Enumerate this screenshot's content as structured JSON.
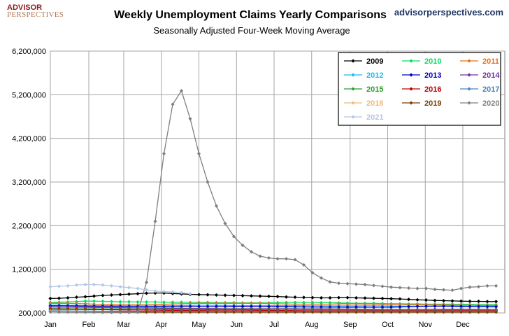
{
  "header": {
    "logo_line1": "ADVISOR",
    "logo_line2": "PERSPECTIVES",
    "site": "advisorperspectives.com"
  },
  "chart_data": {
    "type": "line",
    "title": "Weekly Unemployment Claims Yearly Comparisons",
    "subtitle": "Seasonally Adjusted Four-Week Moving Average",
    "xlabel": "",
    "ylabel": "",
    "ylim": [
      200000,
      6200000
    ],
    "yticks": [
      200000,
      1200000,
      2200000,
      3200000,
      4200000,
      5200000,
      6200000
    ],
    "ytick_labels": [
      "200,000",
      "1,200,000",
      "2,200,000",
      "3,200,000",
      "4,200,000",
      "5,200,000",
      "6,200,000"
    ],
    "xlim": [
      1,
      53
    ],
    "x_tick_labels": [
      "Jan",
      "Feb",
      "Mar",
      "Apr",
      "May",
      "Jun",
      "Jul",
      "Aug",
      "Sep",
      "Oct",
      "Nov",
      "Dec"
    ],
    "x_tick_weeks": [
      1,
      5.4,
      9.4,
      13.7,
      18,
      22.3,
      26.6,
      30.9,
      35.3,
      39.6,
      43.9,
      48.2
    ],
    "grid": true,
    "legend_position": "top-right",
    "series": [
      {
        "name": "2009",
        "color": "#000000",
        "marker": "diamond",
        "values": [
          530000,
          535000,
          545000,
          560000,
          570000,
          585000,
          600000,
          610000,
          620000,
          630000,
          640000,
          650000,
          655000,
          655000,
          645000,
          635000,
          625000,
          620000,
          615000,
          610000,
          605000,
          600000,
          595000,
          590000,
          585000,
          580000,
          575000,
          565000,
          560000,
          555000,
          550000,
          545000,
          545000,
          550000,
          550000,
          545000,
          540000,
          535000,
          530000,
          525000,
          520000,
          510000,
          500000,
          495000,
          485000,
          480000,
          475000,
          470000,
          465000,
          465000,
          460000,
          460000
        ]
      },
      {
        "name": "2010",
        "color": "#00e060",
        "marker": "diamond",
        "values": [
          440000,
          445000,
          450000,
          460000,
          470000,
          470000,
          465000,
          460000,
          455000,
          455000,
          450000,
          450000,
          450000,
          445000,
          445000,
          445000,
          440000,
          440000,
          440000,
          435000,
          435000,
          435000,
          430000,
          430000,
          430000,
          430000,
          435000,
          440000,
          440000,
          440000,
          440000,
          435000,
          435000,
          430000,
          425000,
          420000,
          420000,
          420000,
          415000,
          410000,
          410000,
          405000,
          405000,
          400000,
          400000,
          400000,
          400000,
          395000,
          395000,
          390000,
          390000,
          390000
        ]
      },
      {
        "name": "2011",
        "color": "#e87010",
        "marker": "diamond",
        "values": [
          420000,
          420000,
          420000,
          415000,
          410000,
          400000,
          395000,
          390000,
          385000,
          385000,
          385000,
          385000,
          390000,
          395000,
          405000,
          410000,
          415000,
          420000,
          420000,
          420000,
          420000,
          420000,
          420000,
          420000,
          420000,
          415000,
          410000,
          405000,
          400000,
          400000,
          400000,
          400000,
          400000,
          405000,
          405000,
          405000,
          400000,
          400000,
          395000,
          395000,
          395000,
          390000,
          390000,
          390000,
          390000,
          385000,
          380000,
          375000,
          375000,
          370000,
          370000,
          370000
        ]
      },
      {
        "name": "2012",
        "color": "#20b8e8",
        "marker": "diamond",
        "values": [
          380000,
          378000,
          375000,
          372000,
          370000,
          368000,
          365000,
          365000,
          365000,
          364000,
          362000,
          360000,
          360000,
          362000,
          365000,
          370000,
          372000,
          375000,
          375000,
          374000,
          372000,
          370000,
          368000,
          368000,
          368000,
          367000,
          366000,
          365000,
          364000,
          363000,
          362000,
          361000,
          360000,
          360000,
          360000,
          360000,
          362000,
          362000,
          360000,
          358000,
          356000,
          355000,
          356000,
          358000,
          360000,
          360000,
          358000,
          355000,
          352000,
          350000,
          350000,
          350000
        ]
      },
      {
        "name": "2013",
        "color": "#0000cc",
        "marker": "diamond",
        "values": [
          360000,
          362000,
          360000,
          358000,
          355000,
          352000,
          350000,
          350000,
          348000,
          346000,
          344000,
          342000,
          340000,
          340000,
          342000,
          345000,
          346000,
          346000,
          345000,
          345000,
          346000,
          347000,
          347000,
          346000,
          345000,
          344000,
          342000,
          340000,
          338000,
          336000,
          335000,
          334000,
          333000,
          333000,
          332000,
          332000,
          330000,
          330000,
          330000,
          332000,
          336000,
          342000,
          348000,
          352000,
          354000,
          354000,
          352000,
          348000,
          346000,
          344000,
          342000,
          340000
        ]
      },
      {
        "name": "2014",
        "color": "#7030a0",
        "marker": "diamond",
        "values": [
          335000,
          332000,
          330000,
          328000,
          326000,
          324000,
          322000,
          320000,
          318000,
          316000,
          314000,
          312000,
          310000,
          308000,
          306000,
          304000,
          302000,
          300000,
          299000,
          298000,
          297000,
          296000,
          296000,
          296000,
          296000,
          296000,
          296000,
          296000,
          296000,
          295000,
          294000,
          293000,
          292000,
          290000,
          288000,
          286000,
          284000,
          283000,
          282000,
          281000,
          280000,
          280000,
          280000,
          281000,
          282000,
          283000,
          284000,
          284000,
          283000,
          282000,
          281000,
          280000
        ]
      },
      {
        "name": "2015",
        "color": "#2e9e2e",
        "marker": "diamond",
        "values": [
          300000,
          298000,
          296000,
          295000,
          294000,
          293000,
          292000,
          291000,
          290000,
          289000,
          288000,
          287000,
          286000,
          285000,
          284000,
          283000,
          282000,
          282000,
          282000,
          282000,
          282000,
          281000,
          280000,
          280000,
          280000,
          280000,
          280000,
          279000,
          278000,
          277000,
          276000,
          275000,
          274000,
          273000,
          272000,
          271000,
          270000,
          270000,
          270000,
          270000,
          270000,
          270000,
          270000,
          270000,
          270000,
          270000,
          270000,
          270000,
          270000,
          270000,
          270000,
          270000
        ]
      },
      {
        "name": "2016",
        "color": "#c00000",
        "marker": "diamond",
        "values": [
          285000,
          283000,
          281000,
          280000,
          278000,
          276000,
          274000,
          272000,
          270000,
          268000,
          266000,
          264000,
          262000,
          261000,
          260000,
          260000,
          260000,
          260000,
          261000,
          262000,
          263000,
          263000,
          262000,
          261000,
          260000,
          258000,
          256000,
          254000,
          252000,
          250000,
          250000,
          250000,
          250000,
          250000,
          250000,
          250000,
          250000,
          250000,
          250000,
          250000,
          250000,
          250000,
          250000,
          250000,
          250000,
          250000,
          250000,
          250000,
          250000,
          250000,
          250000,
          250000
        ]
      },
      {
        "name": "2017",
        "color": "#4f81bd",
        "marker": "diamond",
        "values": [
          250000,
          248000,
          246000,
          244000,
          242000,
          241000,
          240000,
          240000,
          240000,
          239000,
          238000,
          237000,
          236000,
          236000,
          236000,
          236000,
          236000,
          236000,
          236000,
          236000,
          236000,
          236000,
          236000,
          236000,
          236000,
          236000,
          236000,
          236000,
          236000,
          236000,
          236000,
          236000,
          236000,
          236000,
          236000,
          236000,
          236000,
          236000,
          236000,
          236000,
          236000,
          236000,
          236000,
          236000,
          236000,
          236000,
          236000,
          236000,
          236000,
          236000,
          236000,
          236000
        ]
      },
      {
        "name": "2018",
        "color": "#f4b97c",
        "marker": "diamond",
        "values": [
          240000,
          238000,
          236000,
          234000,
          232000,
          230000,
          228000,
          226000,
          224000,
          222000,
          220000,
          219000,
          218000,
          218000,
          218000,
          218000,
          218000,
          218000,
          218000,
          218000,
          218000,
          218000,
          218000,
          218000,
          218000,
          218000,
          218000,
          218000,
          218000,
          218000,
          218000,
          218000,
          218000,
          218000,
          218000,
          218000,
          218000,
          218000,
          218000,
          218000,
          218000,
          218000,
          218000,
          218000,
          218000,
          218000,
          218000,
          218000,
          218000,
          218000,
          218000,
          218000
        ]
      },
      {
        "name": "2019",
        "color": "#7b3f00",
        "marker": "diamond",
        "values": [
          225000,
          224000,
          223000,
          222000,
          221000,
          220000,
          220000,
          220000,
          220000,
          220000,
          220000,
          220000,
          220000,
          220000,
          220000,
          220000,
          220000,
          220000,
          220000,
          220000,
          220000,
          220000,
          220000,
          220000,
          220000,
          220000,
          220000,
          220000,
          220000,
          220000,
          220000,
          220000,
          220000,
          220000,
          220000,
          220000,
          220000,
          220000,
          220000,
          220000,
          220000,
          220000,
          220000,
          220000,
          220000,
          220000,
          220000,
          220000,
          220000,
          220000,
          220000,
          220000
        ]
      },
      {
        "name": "2020",
        "color": "#7f7f7f",
        "marker": "diamond",
        "values": [
          225000,
          223000,
          221000,
          219000,
          217000,
          215000,
          213000,
          212000,
          211000,
          210000,
          215000,
          900000,
          2300000,
          3850000,
          4980000,
          5290000,
          4650000,
          3850000,
          3200000,
          2650000,
          2250000,
          1950000,
          1750000,
          1600000,
          1500000,
          1460000,
          1440000,
          1440000,
          1420000,
          1300000,
          1120000,
          1000000,
          910000,
          880000,
          870000,
          860000,
          850000,
          830000,
          810000,
          790000,
          780000,
          770000,
          760000,
          760000,
          740000,
          730000,
          720000,
          760000,
          790000,
          800000,
          820000,
          820000
        ]
      },
      {
        "name": "2021",
        "color": "#b4c7e7",
        "marker": "diamond",
        "values": [
          800000,
          810000,
          820000,
          840000,
          850000,
          850000,
          840000,
          820000,
          800000,
          780000,
          760000,
          730000,
          700000,
          690000,
          680000,
          665000,
          640000
        ]
      }
    ]
  }
}
